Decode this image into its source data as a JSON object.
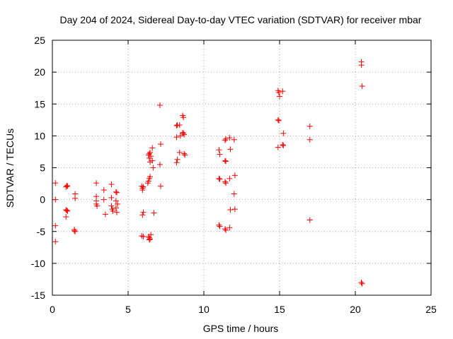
{
  "chart_data": {
    "type": "scatter",
    "title": "Day 204 of 2024, Sidereal Day-to-day VTEC variation (SDTVAR) for receiver mbar",
    "xlabel": "GPS time / hours",
    "ylabel": "SDTVAR / TECUs",
    "xlim": [
      0,
      25
    ],
    "ylim": [
      -15,
      25
    ],
    "xticks": [
      0,
      5,
      10,
      15,
      20,
      25
    ],
    "yticks": [
      -15,
      -10,
      -5,
      0,
      5,
      10,
      15,
      20,
      25
    ],
    "grid": true,
    "marker": "+",
    "marker_color": "#ff0000",
    "series": [
      {
        "name": "mbar",
        "points": [
          [
            0.2,
            2.6
          ],
          [
            0.2,
            0.0
          ],
          [
            0.2,
            -4.1
          ],
          [
            0.2,
            -6.6
          ],
          [
            0.9,
            2.0
          ],
          [
            0.95,
            2.2
          ],
          [
            1.0,
            2.1
          ],
          [
            0.9,
            -1.6
          ],
          [
            1.0,
            -1.8
          ],
          [
            0.95,
            -1.7
          ],
          [
            0.9,
            -2.7
          ],
          [
            1.5,
            0.9
          ],
          [
            1.5,
            0.2
          ],
          [
            1.45,
            -4.7
          ],
          [
            1.5,
            -5.0
          ],
          [
            1.45,
            -4.9
          ],
          [
            2.9,
            2.6
          ],
          [
            2.9,
            0.5
          ],
          [
            2.9,
            -0.2
          ],
          [
            2.9,
            -0.7
          ],
          [
            2.95,
            -1.0
          ],
          [
            3.4,
            1.5
          ],
          [
            3.4,
            0.0
          ],
          [
            3.5,
            -2.3
          ],
          [
            3.9,
            2.4
          ],
          [
            3.9,
            0.3
          ],
          [
            3.9,
            -1.0
          ],
          [
            3.95,
            -1.5
          ],
          [
            4.0,
            -1.8
          ],
          [
            4.2,
            1.2
          ],
          [
            4.25,
            1.1
          ],
          [
            4.2,
            -0.2
          ],
          [
            4.2,
            -1.3
          ],
          [
            4.25,
            -2.0
          ],
          [
            4.3,
            -0.7
          ],
          [
            5.9,
            2.1
          ],
          [
            5.95,
            1.8
          ],
          [
            6.0,
            2.0
          ],
          [
            5.95,
            1.5
          ],
          [
            6.0,
            -2.0
          ],
          [
            5.95,
            -2.4
          ],
          [
            5.9,
            -5.7
          ],
          [
            6.0,
            -5.8
          ],
          [
            6.3,
            2.6
          ],
          [
            6.35,
            2.9
          ],
          [
            6.4,
            3.3
          ],
          [
            6.45,
            3.6
          ],
          [
            6.35,
            7.0
          ],
          [
            6.4,
            7.2
          ],
          [
            6.45,
            7.4
          ],
          [
            6.5,
            6.8
          ],
          [
            6.4,
            6.5
          ],
          [
            6.45,
            5.9
          ],
          [
            6.35,
            -5.8
          ],
          [
            6.4,
            -6.0
          ],
          [
            6.45,
            -6.2
          ],
          [
            6.5,
            -5.5
          ],
          [
            6.4,
            -6.3
          ],
          [
            6.6,
            8.1
          ],
          [
            6.65,
            5.0
          ],
          [
            6.6,
            6.1
          ],
          [
            6.7,
            -2.1
          ],
          [
            7.1,
            14.8
          ],
          [
            7.15,
            8.7
          ],
          [
            7.1,
            5.5
          ],
          [
            7.15,
            2.1
          ],
          [
            8.2,
            11.6
          ],
          [
            8.25,
            11.7
          ],
          [
            8.2,
            9.8
          ],
          [
            8.25,
            6.3
          ],
          [
            8.2,
            5.8
          ],
          [
            8.4,
            11.7
          ],
          [
            8.45,
            10.0
          ],
          [
            8.4,
            7.4
          ],
          [
            8.6,
            13.2
          ],
          [
            8.65,
            12.9
          ],
          [
            8.6,
            10.5
          ],
          [
            8.7,
            10.2
          ],
          [
            8.65,
            10.4
          ],
          [
            8.7,
            7.2
          ],
          [
            8.75,
            7.0
          ],
          [
            11.0,
            7.8
          ],
          [
            11.05,
            7.1
          ],
          [
            11.0,
            3.3
          ],
          [
            11.05,
            3.2
          ],
          [
            11.0,
            -4.0
          ],
          [
            11.05,
            -4.2
          ],
          [
            11.4,
            9.3
          ],
          [
            11.45,
            9.5
          ],
          [
            11.4,
            6.1
          ],
          [
            11.45,
            6.0
          ],
          [
            11.4,
            2.8
          ],
          [
            11.45,
            2.6
          ],
          [
            11.4,
            -4.6
          ],
          [
            11.45,
            -4.8
          ],
          [
            11.7,
            9.7
          ],
          [
            11.75,
            7.9
          ],
          [
            11.7,
            3.3
          ],
          [
            11.75,
            -1.6
          ],
          [
            11.7,
            -4.4
          ],
          [
            12.0,
            9.4
          ],
          [
            12.05,
            3.8
          ],
          [
            12.0,
            0.9
          ],
          [
            12.05,
            -1.5
          ],
          [
            14.9,
            17.1
          ],
          [
            14.95,
            16.8
          ],
          [
            15.0,
            16.2
          ],
          [
            14.9,
            12.5
          ],
          [
            14.95,
            12.4
          ],
          [
            14.9,
            8.2
          ],
          [
            15.2,
            17.0
          ],
          [
            15.25,
            10.4
          ],
          [
            15.2,
            8.6
          ],
          [
            15.25,
            8.5
          ],
          [
            17.0,
            11.5
          ],
          [
            17.0,
            9.4
          ],
          [
            17.0,
            -3.2
          ],
          [
            20.4,
            21.6
          ],
          [
            20.4,
            21.1
          ],
          [
            20.45,
            17.8
          ],
          [
            20.4,
            -13.0
          ],
          [
            20.45,
            -13.2
          ]
        ]
      }
    ]
  }
}
